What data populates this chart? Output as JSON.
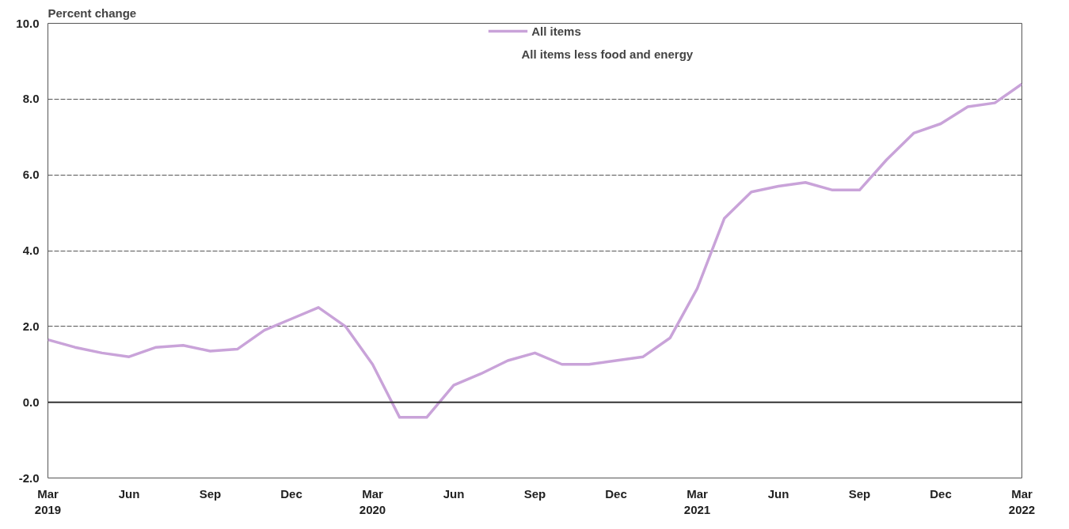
{
  "chart_data": {
    "type": "line",
    "ylabel": "Percent change",
    "x": [
      "2019-03",
      "2019-04",
      "2019-05",
      "2019-06",
      "2019-07",
      "2019-08",
      "2019-09",
      "2019-10",
      "2019-11",
      "2019-12",
      "2020-01",
      "2020-02",
      "2020-03",
      "2020-04",
      "2020-05",
      "2020-06",
      "2020-07",
      "2020-08",
      "2020-09",
      "2020-10",
      "2020-11",
      "2020-12",
      "2021-01",
      "2021-02",
      "2021-03",
      "2021-04",
      "2021-05",
      "2021-06",
      "2021-07",
      "2021-08",
      "2021-09",
      "2021-10",
      "2021-11",
      "2021-12",
      "2022-01",
      "2022-02",
      "2022-03"
    ],
    "series": [
      {
        "name": "All items",
        "color": "#c9a3d9",
        "values": [
          1.65,
          1.45,
          1.3,
          1.2,
          1.45,
          1.5,
          1.35,
          1.4,
          1.9,
          2.2,
          2.5,
          2.0,
          1.0,
          -0.4,
          -0.4,
          0.45,
          0.75,
          1.1,
          1.3,
          1.0,
          1.0,
          1.1,
          1.2,
          1.7,
          3.0,
          4.85,
          5.55,
          5.7,
          5.8,
          5.6,
          5.6,
          6.4,
          7.1,
          7.35,
          7.8,
          7.9,
          8.4
        ]
      }
    ],
    "annotations": [
      "All items less food and energy"
    ],
    "xlim": [
      "2019-03",
      "2022-03"
    ],
    "xticks": [
      {
        "value": "2019-03",
        "label": "Mar\n2019"
      },
      {
        "value": "2019-06",
        "label": "Jun"
      },
      {
        "value": "2019-09",
        "label": "Sep"
      },
      {
        "value": "2019-12",
        "label": "Dec"
      },
      {
        "value": "2020-03",
        "label": "Mar\n2020"
      },
      {
        "value": "2020-06",
        "label": "Jun"
      },
      {
        "value": "2020-09",
        "label": "Sep"
      },
      {
        "value": "2020-12",
        "label": "Dec"
      },
      {
        "value": "2021-03",
        "label": "Mar\n2021"
      },
      {
        "value": "2021-06",
        "label": "Jun"
      },
      {
        "value": "2021-09",
        "label": "Sep"
      },
      {
        "value": "2021-12",
        "label": "Dec"
      },
      {
        "value": "2022-03",
        "label": "Mar\n2022"
      }
    ],
    "ylim": [
      -2.0,
      10.0
    ],
    "yticks": [
      {
        "value": -2,
        "label": "-2.0"
      },
      {
        "value": 0,
        "label": "0.0"
      },
      {
        "value": 2,
        "label": "2.0"
      },
      {
        "value": 4,
        "label": "4.0"
      },
      {
        "value": 6,
        "label": "6.0"
      },
      {
        "value": 8,
        "label": "8.0"
      },
      {
        "value": 10,
        "label": "10.0"
      }
    ],
    "ref_lines": [
      {
        "axis": "y",
        "value": 0,
        "color": "#333333"
      }
    ],
    "grid": "y",
    "legend": "top",
    "marker": "none",
    "line_style": "solid"
  }
}
